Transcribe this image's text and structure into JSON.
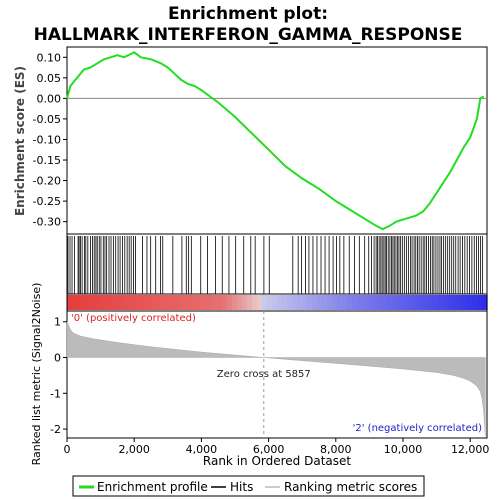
{
  "colors": {
    "enrichment": "#22dd22",
    "hits": "#000000",
    "metric": "#bbbbbb",
    "positive_label": "#dd2222",
    "negative_label": "#2222cc",
    "zero_line": "#999999"
  },
  "chart_data": {
    "type": "line",
    "title_line1": "Enrichment plot:",
    "title_line2": "HALLMARK_INTERFERON_GAMMA_RESPONSE",
    "es_panel": {
      "ylabel": "Enrichment score (ES)",
      "ylim": [
        -0.33,
        0.125
      ],
      "yticks": [
        "0.10",
        "0.05",
        "0.00",
        "-0.05",
        "-0.10",
        "-0.15",
        "-0.20",
        "-0.25",
        "-0.30"
      ],
      "ytick_values": [
        0.1,
        0.05,
        0.0,
        -0.05,
        -0.1,
        -0.15,
        -0.2,
        -0.25,
        -0.3
      ],
      "grid": false
    },
    "xlim": [
      0,
      12500
    ],
    "xlabel": "Rank in Ordered Dataset",
    "xticks": [
      "0",
      "2,000",
      "4,000",
      "6,000",
      "8,000",
      "10,000",
      "12,000"
    ],
    "xtick_values": [
      0,
      2000,
      4000,
      6000,
      8000,
      10000,
      12000
    ],
    "enrichment_profile": {
      "x": [
        0,
        100,
        200,
        300,
        400,
        500,
        700,
        900,
        1100,
        1300,
        1500,
        1700,
        1900,
        2000,
        2200,
        2500,
        2800,
        3000,
        3200,
        3400,
        3600,
        3800,
        4000,
        4500,
        5000,
        5500,
        6000,
        6500,
        7000,
        7500,
        8000,
        8500,
        9000,
        9200,
        9400,
        9600,
        9800,
        10000,
        10200,
        10400,
        10600,
        10800,
        11000,
        11200,
        11400,
        11600,
        11800,
        12000,
        12200,
        12300,
        12400
      ],
      "y": [
        0.0,
        0.03,
        0.04,
        0.05,
        0.06,
        0.07,
        0.075,
        0.085,
        0.095,
        0.1,
        0.105,
        0.1,
        0.108,
        0.112,
        0.1,
        0.095,
        0.085,
        0.075,
        0.06,
        0.045,
        0.035,
        0.03,
        0.02,
        -0.01,
        -0.045,
        -0.085,
        -0.125,
        -0.165,
        -0.195,
        -0.22,
        -0.25,
        -0.275,
        -0.3,
        -0.31,
        -0.318,
        -0.31,
        -0.3,
        -0.295,
        -0.29,
        -0.285,
        -0.275,
        -0.255,
        -0.23,
        -0.205,
        -0.18,
        -0.15,
        -0.12,
        -0.095,
        -0.05,
        0.0,
        0.005
      ]
    },
    "hits": [
      30,
      90,
      150,
      220,
      330,
      360,
      400,
      450,
      520,
      560,
      620,
      700,
      760,
      810,
      860,
      900,
      960,
      1010,
      1080,
      1130,
      1180,
      1250,
      1310,
      1380,
      1450,
      1520,
      1580,
      1650,
      1720,
      1790,
      1850,
      1910,
      1980,
      2040,
      2250,
      2380,
      2490,
      2640,
      2780,
      2850,
      3150,
      3420,
      3550,
      3620,
      3700,
      3980,
      4180,
      4420,
      4620,
      4820,
      5020,
      5260,
      5470,
      5600,
      5860,
      6020,
      6720,
      6880,
      6980,
      7100,
      7200,
      7320,
      7440,
      7560,
      7680,
      7800,
      7920,
      8020,
      8120,
      8240,
      8400,
      8560,
      8700,
      8860,
      8980,
      9060,
      9140,
      9200,
      9240,
      9290,
      9340,
      9380,
      9430,
      9470,
      9510,
      9560,
      9610,
      9660,
      9700,
      9740,
      9790,
      9840,
      9880,
      9930,
      9980,
      10040,
      10100,
      10160,
      10220,
      10270,
      10330,
      10380,
      10430,
      10480,
      10540,
      10600,
      10650,
      10700,
      10760,
      10820,
      10870,
      10920,
      10980,
      11040,
      11100,
      11150,
      11210,
      11270,
      11330,
      11390,
      11450,
      11510,
      11570,
      11640,
      11700,
      11770,
      11840,
      11910,
      11980,
      12050,
      12120,
      12190,
      12250,
      12310,
      12370
    ],
    "metric_panel": {
      "ylabel": "Ranked list metric (Signal2Noise)",
      "ylim": [
        -2.25,
        1.3
      ],
      "yticks": [
        "1",
        "0",
        "-1",
        "-2"
      ],
      "ytick_values": [
        1,
        0,
        -1,
        -2
      ],
      "x": [
        0,
        50,
        100,
        200,
        400,
        800,
        1500,
        2500,
        4000,
        5000,
        5857,
        7000,
        8500,
        10000,
        11000,
        11500,
        11800,
        12000,
        12200,
        12300,
        12350,
        12400,
        12450
      ],
      "y": [
        1.0,
        0.9,
        0.78,
        0.68,
        0.6,
        0.52,
        0.42,
        0.3,
        0.15,
        0.07,
        0.0,
        -0.09,
        -0.2,
        -0.32,
        -0.42,
        -0.5,
        -0.58,
        -0.66,
        -0.8,
        -0.95,
        -1.15,
        -1.5,
        -2.2
      ]
    },
    "annotations": {
      "positive_label": "'0' (positively correlated)",
      "zero_cross": "Zero cross at 5857",
      "zero_cross_value": 5857,
      "negative_label": "'2' (negatively correlated)"
    },
    "legend": {
      "placement": "bottom",
      "items": [
        "Enrichment profile",
        "Hits",
        "Ranking metric scores"
      ]
    }
  }
}
